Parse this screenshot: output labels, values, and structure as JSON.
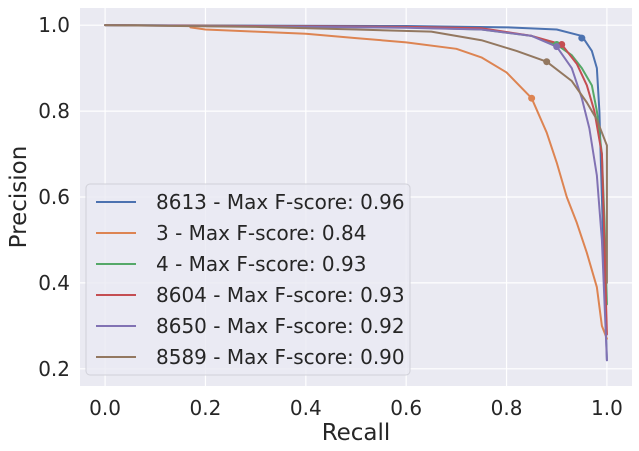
{
  "chart_data": {
    "type": "line",
    "title": "",
    "xlabel": "Recall",
    "ylabel": "Precision",
    "xlim": [
      -0.05,
      1.05
    ],
    "ylim": [
      0.16,
      1.04
    ],
    "x_ticks": [
      0.0,
      0.2,
      0.4,
      0.6,
      0.8,
      1.0
    ],
    "y_ticks": [
      0.2,
      0.4,
      0.6,
      0.8,
      1.0
    ],
    "x_tick_labels": [
      "0.0",
      "0.2",
      "0.4",
      "0.6",
      "0.8",
      "1.0"
    ],
    "y_tick_labels": [
      "0.2",
      "0.4",
      "0.6",
      "0.8",
      "1.0"
    ],
    "grid": true,
    "background": "#EAEAF2",
    "legend_position": "lower-left",
    "series": [
      {
        "name": "8613 - Max F-score: 0.96",
        "color": "#4C72B0",
        "max_point": [
          0.95,
          0.97
        ],
        "points": [
          [
            0.0,
            1.0
          ],
          [
            0.3,
            0.999
          ],
          [
            0.6,
            0.998
          ],
          [
            0.8,
            0.995
          ],
          [
            0.9,
            0.99
          ],
          [
            0.95,
            0.975
          ],
          [
            0.97,
            0.94
          ],
          [
            0.98,
            0.9
          ],
          [
            0.985,
            0.8
          ],
          [
            0.99,
            0.6
          ],
          [
            0.995,
            0.4
          ],
          [
            1.0,
            0.22
          ]
        ]
      },
      {
        "name": "3 - Max F-score: 0.84",
        "color": "#DD8452",
        "max_point": [
          0.85,
          0.83
        ],
        "points": [
          [
            0.17,
            0.995
          ],
          [
            0.2,
            0.99
          ],
          [
            0.3,
            0.985
          ],
          [
            0.4,
            0.98
          ],
          [
            0.5,
            0.97
          ],
          [
            0.6,
            0.96
          ],
          [
            0.7,
            0.945
          ],
          [
            0.75,
            0.925
          ],
          [
            0.8,
            0.89
          ],
          [
            0.85,
            0.83
          ],
          [
            0.88,
            0.75
          ],
          [
            0.9,
            0.68
          ],
          [
            0.92,
            0.6
          ],
          [
            0.94,
            0.54
          ],
          [
            0.96,
            0.47
          ],
          [
            0.98,
            0.39
          ],
          [
            0.99,
            0.3
          ],
          [
            1.0,
            0.27
          ]
        ]
      },
      {
        "name": "4 - Max F-score: 0.93",
        "color": "#55A868",
        "max_point": [
          0.9,
          0.955
        ],
        "points": [
          [
            0.0,
            1.0
          ],
          [
            0.3,
            0.998
          ],
          [
            0.6,
            0.995
          ],
          [
            0.75,
            0.99
          ],
          [
            0.85,
            0.975
          ],
          [
            0.9,
            0.955
          ],
          [
            0.93,
            0.93
          ],
          [
            0.95,
            0.9
          ],
          [
            0.97,
            0.86
          ],
          [
            0.98,
            0.8
          ],
          [
            0.99,
            0.7
          ],
          [
            0.995,
            0.55
          ],
          [
            1.0,
            0.35
          ]
        ]
      },
      {
        "name": "8604 - Max F-score: 0.93",
        "color": "#C44E52",
        "max_point": [
          0.91,
          0.955
        ],
        "points": [
          [
            0.0,
            1.0
          ],
          [
            0.3,
            0.998
          ],
          [
            0.6,
            0.996
          ],
          [
            0.75,
            0.993
          ],
          [
            0.85,
            0.975
          ],
          [
            0.91,
            0.955
          ],
          [
            0.94,
            0.91
          ],
          [
            0.96,
            0.86
          ],
          [
            0.975,
            0.8
          ],
          [
            0.99,
            0.7
          ],
          [
            0.995,
            0.5
          ],
          [
            1.0,
            0.28
          ]
        ]
      },
      {
        "name": "8650 - Max F-score: 0.92",
        "color": "#8172B3",
        "max_point": [
          0.9,
          0.95
        ],
        "points": [
          [
            0.0,
            1.0
          ],
          [
            0.3,
            0.997
          ],
          [
            0.6,
            0.994
          ],
          [
            0.75,
            0.99
          ],
          [
            0.85,
            0.975
          ],
          [
            0.9,
            0.95
          ],
          [
            0.93,
            0.9
          ],
          [
            0.95,
            0.83
          ],
          [
            0.965,
            0.76
          ],
          [
            0.98,
            0.65
          ],
          [
            0.99,
            0.5
          ],
          [
            1.0,
            0.22
          ]
        ]
      },
      {
        "name": "8589 - Max F-score: 0.90",
        "color": "#937860",
        "max_point": [
          0.88,
          0.915
        ],
        "points": [
          [
            0.0,
            1.0
          ],
          [
            0.3,
            0.996
          ],
          [
            0.5,
            0.99
          ],
          [
            0.65,
            0.985
          ],
          [
            0.75,
            0.965
          ],
          [
            0.82,
            0.94
          ],
          [
            0.88,
            0.915
          ],
          [
            0.93,
            0.87
          ],
          [
            0.96,
            0.82
          ],
          [
            0.98,
            0.78
          ],
          [
            0.99,
            0.75
          ],
          [
            1.0,
            0.72
          ],
          [
            1.0,
            0.4
          ]
        ]
      }
    ]
  }
}
